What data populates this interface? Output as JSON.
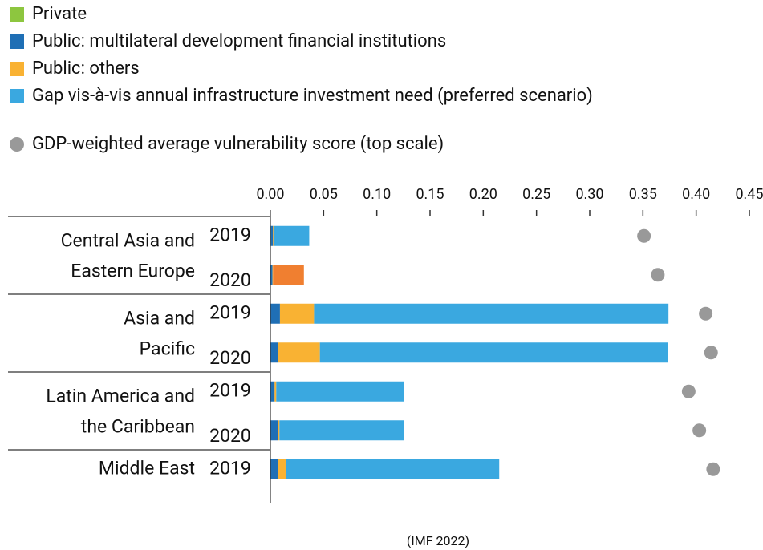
{
  "chart_data": {
    "type": "stacked-bar-dot",
    "groups": [
      {
        "label": [
          "Central Asia and",
          "Eastern Europe"
        ],
        "years": [
          "2019",
          "2020"
        ]
      },
      {
        "label": [
          "Asia and",
          "Pacific"
        ],
        "years": [
          "2019",
          "2020"
        ]
      },
      {
        "label": [
          "Latin America and",
          "the Caribbean"
        ],
        "years": [
          "2019",
          "2020"
        ]
      },
      {
        "label": [
          "Middle East"
        ],
        "years": [
          "2019"
        ]
      }
    ],
    "series": [
      {
        "name": "Private",
        "color": "#8dc63f",
        "values": [
          0.0005,
          0,
          0,
          0,
          0,
          0,
          0
        ]
      },
      {
        "name": "Public: multilateral development financial institutions",
        "color": "#1f6fb5",
        "values": [
          0.002,
          0.002,
          0.009,
          0.0075,
          0.004,
          0.0075,
          0.007
        ]
      },
      {
        "name": "Public: others",
        "color": "#f9b233",
        "values": [
          0.001,
          0.0005,
          0.032,
          0.039,
          0.0015,
          0.001,
          0.008
        ]
      },
      {
        "name": "Gap vis-à-vis annual infrastructure investment need (preferred scenario)",
        "color": "#3aa8e0",
        "colors": [
          "#3aa8e0",
          "#f07f30",
          "#3aa8e0",
          "#3aa8e0",
          "#3aa8e0",
          "#3aa8e0",
          "#3aa8e0"
        ],
        "values": [
          0.033,
          0.029,
          0.333,
          0.327,
          0.12,
          0.117,
          0.2
        ]
      }
    ],
    "dots": {
      "name": "GDP-weighted average vulnerability score (top scale)",
      "color": "#999999",
      "values": [
        0.351,
        0.364,
        0.409,
        0.414,
        0.393,
        0.403,
        0.416
      ]
    },
    "xlim": [
      0,
      0.45
    ],
    "xticks": [
      {
        "value": 0,
        "label": "0.00"
      },
      0.05,
      {
        "value": 0.1,
        "label": "0.10"
      },
      0.15,
      {
        "value": 0.2,
        "label": "0.20"
      },
      0.25,
      {
        "value": 0.3,
        "label": "0.30"
      },
      0.35,
      {
        "value": 0.4,
        "label": "0.40"
      },
      0.45
    ],
    "source": "(IMF 2022)"
  }
}
